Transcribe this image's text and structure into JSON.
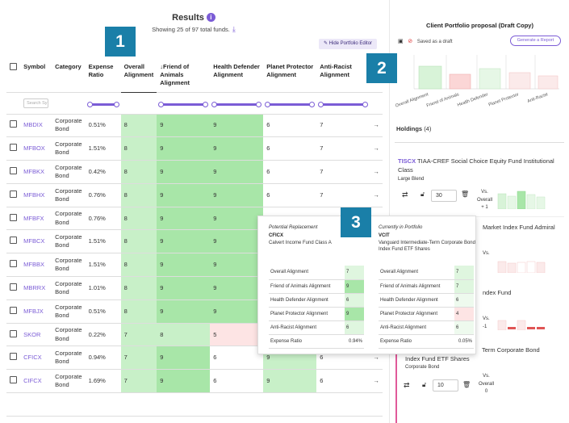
{
  "results": {
    "title": "Results",
    "info_icon": "i",
    "showing": "Showing 25 of 97 total funds.",
    "download_icon": "⤓",
    "hide_editor": "Hide Portfolio Editor",
    "search_placeholder": "Search Sy",
    "columns": [
      "Symbol",
      "Category",
      "Expense Ratio",
      "Overall Alignment",
      "Friend of Animals Alignment",
      "Health Defender Alignment",
      "Planet Protector Alignment",
      "Anti-Racist Alignment"
    ],
    "sort_icon": "↓",
    "rows": [
      {
        "symbol": "MBDIX",
        "category": "Corporate Bond",
        "expense": "0.51%",
        "overall": "8",
        "animals": "9",
        "health": "9",
        "planet": "6",
        "racist": "7"
      },
      {
        "symbol": "MFBOX",
        "category": "Corporate Bond",
        "expense": "1.51%",
        "overall": "8",
        "animals": "9",
        "health": "9",
        "planet": "6",
        "racist": "7"
      },
      {
        "symbol": "MFBKX",
        "category": "Corporate Bond",
        "expense": "0.42%",
        "overall": "8",
        "animals": "9",
        "health": "9",
        "planet": "6",
        "racist": "7"
      },
      {
        "symbol": "MFBHX",
        "category": "Corporate Bond",
        "expense": "0.76%",
        "overall": "8",
        "animals": "9",
        "health": "9",
        "planet": "6",
        "racist": "7"
      },
      {
        "symbol": "MFBFX",
        "category": "Corporate Bond",
        "expense": "0.76%",
        "overall": "8",
        "animals": "9",
        "health": "9",
        "planet": "",
        "racist": ""
      },
      {
        "symbol": "MFBCX",
        "category": "Corporate Bond",
        "expense": "1.51%",
        "overall": "8",
        "animals": "9",
        "health": "9",
        "planet": "",
        "racist": ""
      },
      {
        "symbol": "MFBBX",
        "category": "Corporate Bond",
        "expense": "1.51%",
        "overall": "8",
        "animals": "9",
        "health": "9",
        "planet": "",
        "racist": ""
      },
      {
        "symbol": "MBRRX",
        "category": "Corporate Bond",
        "expense": "1.01%",
        "overall": "8",
        "animals": "9",
        "health": "9",
        "planet": "",
        "racist": ""
      },
      {
        "symbol": "MFBJX",
        "category": "Corporate Bond",
        "expense": "0.51%",
        "overall": "8",
        "animals": "9",
        "health": "9",
        "planet": "",
        "racist": ""
      },
      {
        "symbol": "SKOR",
        "category": "Corporate Bond",
        "expense": "0.22%",
        "overall": "7",
        "animals": "8",
        "health": "5",
        "planet": "",
        "racist": ""
      },
      {
        "symbol": "CFICX",
        "category": "Corporate Bond",
        "expense": "0.94%",
        "overall": "7",
        "animals": "9",
        "health": "6",
        "planet": "9",
        "racist": "6"
      },
      {
        "symbol": "CIFCX",
        "category": "Corporate Bond",
        "expense": "1.69%",
        "overall": "7",
        "animals": "9",
        "health": "6",
        "planet": "9",
        "racist": "6"
      },
      {
        "symbol": "",
        "category": "",
        "expense": "",
        "overall": "",
        "animals": "",
        "health": "",
        "planet": "",
        "racist": ""
      }
    ],
    "row_arrow": "→"
  },
  "badges": [
    "1",
    "2",
    "3"
  ],
  "proposal": {
    "title": "Client Portfolio proposal (Draft Copy)",
    "saved": "Saved as a draft",
    "generate": "Generate a Report",
    "chart_labels": [
      "Overall Alignment",
      "Friend of Animals",
      "Health Defender",
      "Planet Protector",
      "Anti-Racist"
    ],
    "holdings_label": "Holdings",
    "holdings_count": "(4)",
    "holding1": {
      "ticker": "TISCX",
      "name": "TIAA-CREF Social Choice Equity Fund Institutional Class",
      "category": "Large Blend",
      "qty": "30",
      "vs": "Vs.",
      "overall": "Overall",
      "delta": "+ 1"
    },
    "holding2_name": "Market Index Fund Admiral",
    "holding2_vs": "Vs.",
    "holding3_name": "ndex Fund",
    "holding3_vs": "Vs.",
    "holding3_delta": "-1",
    "holding4": {
      "name_prefix": "Term Corporate Bond",
      "name": "Index Fund ETF Shares",
      "category": "Corporate Bond",
      "qty": "10",
      "vs": "Vs.",
      "overall": "Overall",
      "delta": "0"
    }
  },
  "popup": {
    "left": {
      "sub": "Potential Replacement",
      "ticker": "CFICX",
      "name": "Calvert Income Fund Class A",
      "rows": [
        [
          "Overall Alignment",
          "7"
        ],
        [
          "Friend of Animals Alignment",
          "9"
        ],
        [
          "Health Defender Alignment",
          "6"
        ],
        [
          "Planet Protector Alignment",
          "9"
        ],
        [
          "Anti-Racist Alignment",
          "6"
        ],
        [
          "Expense Ratio",
          "0.94%"
        ]
      ]
    },
    "right": {
      "sub": "Currently in Portfolio",
      "ticker": "VCIT",
      "name": "Vanguard Intermediate-Term Corporate Bond Index Fund ETF Shares",
      "rows": [
        [
          "Overall Alignment",
          "7"
        ],
        [
          "Friend of Animals Alignment",
          "7"
        ],
        [
          "Health Defender Alignment",
          "6"
        ],
        [
          "Planet Protector Alignment",
          "4"
        ],
        [
          "Anti-Racist Alignment",
          "6"
        ],
        [
          "Expense Ratio",
          "0.05%"
        ]
      ]
    }
  },
  "colors": {
    "accent": "#7b5cd6",
    "badge": "#1a7fa8",
    "green_strong": "#a8e6a8",
    "green": "#c8f0c8",
    "red_light": "#fde4e4",
    "pink_border": "#e05a9a"
  }
}
